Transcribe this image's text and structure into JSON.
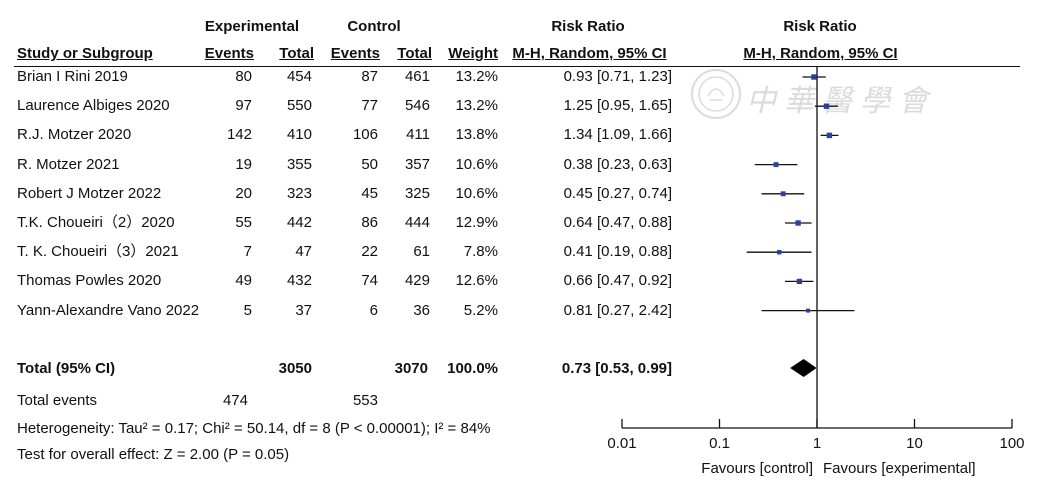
{
  "headers": {
    "experimental": "Experimental",
    "control": "Control",
    "risk_ratio_table": "Risk Ratio",
    "risk_ratio_plot": "Risk Ratio",
    "study": "Study or Subgroup",
    "events": "Events",
    "total": "Total",
    "events2": "Events",
    "total2": "Total",
    "weight": "Weight",
    "method_table": "M-H, Random, 95% CI",
    "method_plot": "M-H, Random, 95% CI"
  },
  "chart_data": {
    "type": "forest",
    "x_scale": "log",
    "xlim": [
      0.01,
      100
    ],
    "ticks": [
      0.01,
      0.1,
      1,
      10,
      100
    ],
    "tick_labels": [
      "0.01",
      "0.1",
      "1",
      "10",
      "100"
    ],
    "favours_left": "Favours [control]",
    "favours_right": "Favours [experimental]",
    "studies": [
      {
        "study": "Brian I Rini 2019",
        "exp_events": "80",
        "exp_total": "454",
        "ctl_events": "87",
        "ctl_total": "461",
        "weight": "13.2%",
        "ci_text": "0.93 [0.71, 1.23]",
        "rr": 0.93,
        "lo": 0.71,
        "hi": 1.23
      },
      {
        "study": "Laurence Albiges 2020",
        "exp_events": "97",
        "exp_total": "550",
        "ctl_events": "77",
        "ctl_total": "546",
        "weight": "13.2%",
        "ci_text": "1.25 [0.95, 1.65]",
        "rr": 1.25,
        "lo": 0.95,
        "hi": 1.65
      },
      {
        "study": "R.J. Motzer 2020",
        "exp_events": "142",
        "exp_total": "410",
        "ctl_events": "106",
        "ctl_total": "411",
        "weight": "13.8%",
        "ci_text": "1.34 [1.09, 1.66]",
        "rr": 1.34,
        "lo": 1.09,
        "hi": 1.66
      },
      {
        "study": "R. Motzer 2021",
        "exp_events": "19",
        "exp_total": "355",
        "ctl_events": "50",
        "ctl_total": "357",
        "weight": "10.6%",
        "ci_text": "0.38 [0.23, 0.63]",
        "rr": 0.38,
        "lo": 0.23,
        "hi": 0.63
      },
      {
        "study": "Robert J Motzer 2022",
        "exp_events": "20",
        "exp_total": "323",
        "ctl_events": "45",
        "ctl_total": "325",
        "weight": "10.6%",
        "ci_text": "0.45 [0.27, 0.74]",
        "rr": 0.45,
        "lo": 0.27,
        "hi": 0.74
      },
      {
        "study": "T.K. Choueiri（2）2020",
        "exp_events": "55",
        "exp_total": "442",
        "ctl_events": "86",
        "ctl_total": "444",
        "weight": "12.9%",
        "ci_text": "0.64 [0.47, 0.88]",
        "rr": 0.64,
        "lo": 0.47,
        "hi": 0.88
      },
      {
        "study": "T. K. Choueiri（3）2021",
        "exp_events": "7",
        "exp_total": "47",
        "ctl_events": "22",
        "ctl_total": "61",
        "weight": "7.8%",
        "ci_text": "0.41 [0.19, 0.88]",
        "rr": 0.41,
        "lo": 0.19,
        "hi": 0.88
      },
      {
        "study": "Thomas Powles  2020",
        "exp_events": "49",
        "exp_total": "432",
        "ctl_events": "74",
        "ctl_total": "429",
        "weight": "12.6%",
        "ci_text": "0.66 [0.47, 0.92]",
        "rr": 0.66,
        "lo": 0.47,
        "hi": 0.92
      },
      {
        "study": "Yann-Alexandre Vano 2022",
        "exp_events": "5",
        "exp_total": "37",
        "ctl_events": "6",
        "ctl_total": "36",
        "weight": "5.2%",
        "ci_text": "0.81 [0.27, 2.42]",
        "rr": 0.81,
        "lo": 0.27,
        "hi": 2.42
      }
    ],
    "total": {
      "label": "Total (95% CI)",
      "exp_total": "3050",
      "ctl_total": "3070",
      "weight": "100.0%",
      "ci_text": "0.73 [0.53, 0.99]",
      "rr": 0.73,
      "lo": 0.53,
      "hi": 0.99
    },
    "total_events": {
      "label": "Total events",
      "exp": "474",
      "ctl": "553"
    },
    "heterogeneity": "Heterogeneity: Tau² = 0.17; Chi² = 50.14, df = 8 (P < 0.00001); I² = 84%",
    "overall_effect": "Test for overall effect: Z = 2.00 (P = 0.05)",
    "colors": {
      "marker": "#2b3f9e",
      "line": "#111111",
      "diamond": "#000000"
    }
  },
  "watermark": {
    "text": "中華醫學會"
  }
}
